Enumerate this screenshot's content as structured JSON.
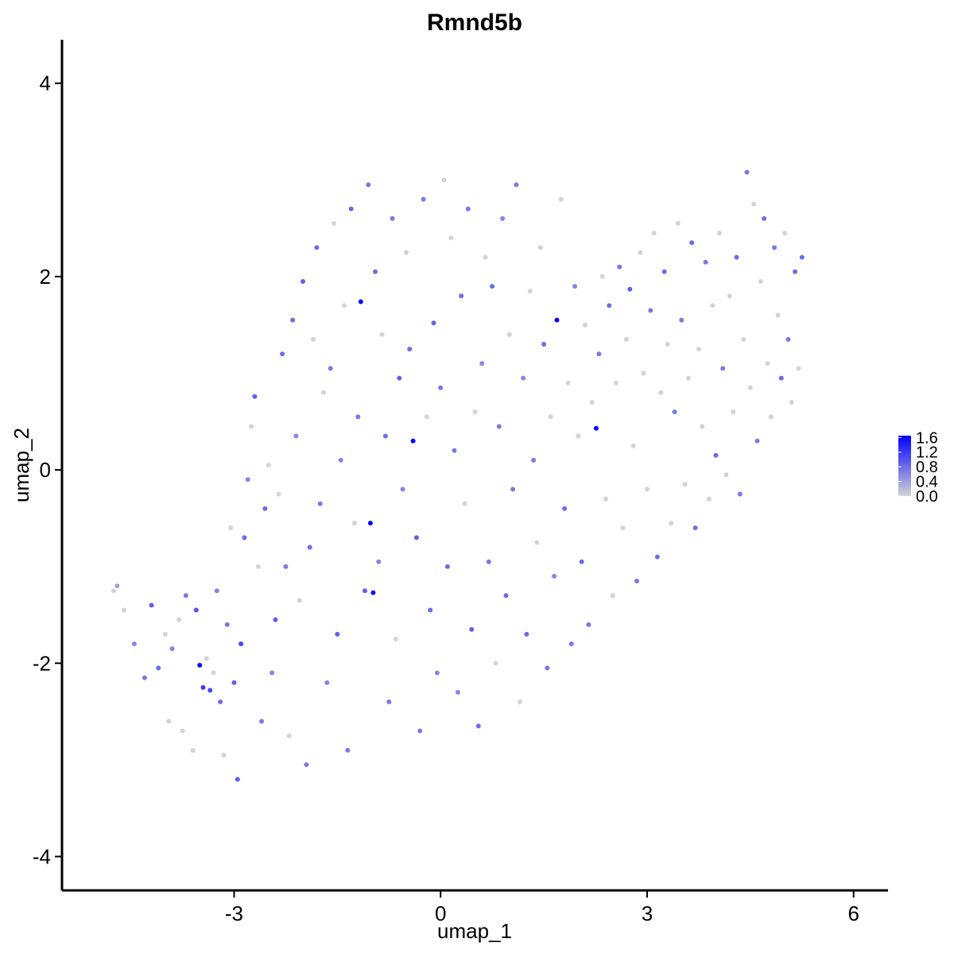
{
  "chart_data": {
    "type": "scatter",
    "title": "Rmnd5b",
    "xlabel": "umap_1",
    "ylabel": "umap_2",
    "xlim": [
      -5.5,
      6.5
    ],
    "ylim": [
      -4.35,
      4.45
    ],
    "x_ticks": [
      -3,
      0,
      3,
      6
    ],
    "x_tick_labels": [
      "-3",
      "0",
      "3",
      "6"
    ],
    "y_ticks": [
      4,
      2,
      0,
      -2,
      -4
    ],
    "y_tick_labels": [
      "4",
      "2",
      "0",
      "-2",
      "-4"
    ],
    "grid": false,
    "color_scale": {
      "low": "#d3d3d3",
      "high": "#0000ff",
      "min": 0.0,
      "max": 1.65,
      "breaks": [
        1.6,
        1.2,
        0.8,
        0.4,
        0.0
      ],
      "break_labels": [
        "1.6",
        "1.2",
        "0.8",
        "0.4",
        "0.0"
      ],
      "legend_position": "right"
    },
    "points": [
      [
        -4.75,
        -1.25,
        0
      ],
      [
        -4.7,
        -1.2,
        0.4
      ],
      [
        -4.6,
        -1.45,
        0
      ],
      [
        -4.45,
        -1.8,
        0.6
      ],
      [
        -4.3,
        -2.15,
        0.7
      ],
      [
        -4.2,
        -1.4,
        0.9
      ],
      [
        -4.1,
        -2.05,
        0.8
      ],
      [
        -4.0,
        -1.7,
        0
      ],
      [
        -3.95,
        -2.6,
        0
      ],
      [
        -3.9,
        -1.85,
        0.6
      ],
      [
        -3.8,
        -1.55,
        0
      ],
      [
        -3.75,
        -2.7,
        0
      ],
      [
        -3.7,
        -1.3,
        0.7
      ],
      [
        -3.6,
        -2.9,
        0
      ],
      [
        -3.55,
        -1.45,
        1.0
      ],
      [
        -3.5,
        -2.02,
        1.6
      ],
      [
        -3.45,
        -2.25,
        1.2
      ],
      [
        -3.4,
        -1.95,
        0
      ],
      [
        -3.35,
        -2.28,
        1.1
      ],
      [
        -3.3,
        -2.1,
        0
      ],
      [
        -3.25,
        -1.25,
        0.6
      ],
      [
        -3.2,
        -2.4,
        0.8
      ],
      [
        -3.15,
        -2.95,
        0
      ],
      [
        -3.1,
        -1.6,
        0.7
      ],
      [
        -3.05,
        -0.6,
        0
      ],
      [
        -3.0,
        -2.2,
        0.9
      ],
      [
        -2.95,
        -3.2,
        0.9
      ],
      [
        -2.9,
        -1.8,
        1.1
      ],
      [
        -2.85,
        -0.7,
        0.8
      ],
      [
        -2.8,
        -0.1,
        0.6
      ],
      [
        -2.75,
        0.45,
        0
      ],
      [
        -2.7,
        0.76,
        0.9
      ],
      [
        -2.65,
        -1.0,
        0
      ],
      [
        -2.6,
        -2.6,
        0.7
      ],
      [
        -2.55,
        -0.4,
        0.8
      ],
      [
        -2.5,
        0.05,
        0
      ],
      [
        -2.45,
        -2.1,
        0.6
      ],
      [
        -2.4,
        -1.55,
        0.9
      ],
      [
        -2.35,
        -0.25,
        0
      ],
      [
        -2.3,
        1.2,
        0.8
      ],
      [
        -2.25,
        -1.0,
        0.7
      ],
      [
        -2.2,
        -2.75,
        0
      ],
      [
        -2.15,
        1.55,
        0.8
      ],
      [
        -2.1,
        0.35,
        0.6
      ],
      [
        -2.05,
        -1.35,
        0
      ],
      [
        -2.0,
        1.95,
        0.9
      ],
      [
        -1.95,
        -3.05,
        0.7
      ],
      [
        -1.9,
        -0.8,
        0.8
      ],
      [
        -1.85,
        1.35,
        0
      ],
      [
        -1.8,
        2.3,
        0.8
      ],
      [
        -1.75,
        -0.35,
        0.7
      ],
      [
        -1.7,
        0.8,
        0
      ],
      [
        -1.65,
        -2.2,
        0.6
      ],
      [
        -1.6,
        1.05,
        0.7
      ],
      [
        -1.55,
        2.55,
        0
      ],
      [
        -1.5,
        -1.7,
        0.9
      ],
      [
        -1.45,
        0.1,
        0.6
      ],
      [
        -1.4,
        1.7,
        0
      ],
      [
        -1.35,
        -2.9,
        0.7
      ],
      [
        -1.3,
        2.7,
        0.8
      ],
      [
        -1.25,
        -0.55,
        0
      ],
      [
        -1.2,
        0.55,
        0.7
      ],
      [
        -1.16,
        1.74,
        1.6
      ],
      [
        -1.1,
        -1.25,
        0.9
      ],
      [
        -1.05,
        2.95,
        0.7
      ],
      [
        -1.02,
        -0.55,
        1.6
      ],
      [
        -0.98,
        -1.27,
        1.5
      ],
      [
        -0.95,
        2.05,
        0.8
      ],
      [
        -0.9,
        -0.95,
        0.6
      ],
      [
        -0.85,
        1.4,
        0
      ],
      [
        -0.8,
        0.35,
        0.8
      ],
      [
        -0.75,
        -2.4,
        0.7
      ],
      [
        -0.7,
        2.6,
        0.7
      ],
      [
        -0.65,
        -1.75,
        0
      ],
      [
        -0.6,
        0.95,
        0.9
      ],
      [
        -0.55,
        -0.2,
        0.6
      ],
      [
        -0.5,
        2.25,
        0
      ],
      [
        -0.45,
        1.25,
        0.8
      ],
      [
        -0.4,
        0.3,
        1.6
      ],
      [
        -0.35,
        -0.7,
        0.9
      ],
      [
        -0.3,
        -2.7,
        0.7
      ],
      [
        -0.25,
        2.8,
        0.7
      ],
      [
        -0.2,
        0.55,
        0
      ],
      [
        -0.15,
        -1.45,
        0.8
      ],
      [
        -0.1,
        1.52,
        0.9
      ],
      [
        -0.05,
        -2.1,
        0.6
      ],
      [
        0.0,
        0.85,
        0.7
      ],
      [
        0.05,
        3.0,
        0
      ],
      [
        0.1,
        -1.0,
        0.8
      ],
      [
        0.15,
        2.4,
        0
      ],
      [
        0.2,
        0.2,
        0.7
      ],
      [
        0.25,
        -2.3,
        0.6
      ],
      [
        0.3,
        1.8,
        0.8
      ],
      [
        0.35,
        -0.35,
        0
      ],
      [
        0.4,
        2.7,
        0.7
      ],
      [
        0.45,
        -1.65,
        0.9
      ],
      [
        0.5,
        0.6,
        0
      ],
      [
        0.55,
        -2.65,
        0.8
      ],
      [
        0.6,
        1.1,
        0.6
      ],
      [
        0.65,
        2.2,
        0
      ],
      [
        0.7,
        -0.95,
        0.7
      ],
      [
        0.75,
        1.9,
        0.8
      ],
      [
        0.8,
        -2.0,
        0
      ],
      [
        0.85,
        0.45,
        0.7
      ],
      [
        0.9,
        2.6,
        0.6
      ],
      [
        0.95,
        -1.3,
        0.8
      ],
      [
        1.0,
        1.4,
        0
      ],
      [
        1.05,
        -0.2,
        0.7
      ],
      [
        1.1,
        2.95,
        0.7
      ],
      [
        1.15,
        -2.4,
        0
      ],
      [
        1.2,
        0.95,
        0.6
      ],
      [
        1.25,
        -1.7,
        0.8
      ],
      [
        1.3,
        1.85,
        0
      ],
      [
        1.35,
        0.1,
        0.7
      ],
      [
        1.4,
        -0.75,
        0
      ],
      [
        1.45,
        2.3,
        0
      ],
      [
        1.5,
        1.3,
        0.8
      ],
      [
        1.55,
        -2.05,
        0.7
      ],
      [
        1.6,
        0.55,
        0
      ],
      [
        1.65,
        -1.1,
        0.6
      ],
      [
        1.69,
        1.55,
        1.6
      ],
      [
        1.75,
        2.8,
        0
      ],
      [
        1.8,
        -0.4,
        0.8
      ],
      [
        1.85,
        0.9,
        0
      ],
      [
        1.9,
        -1.8,
        0.7
      ],
      [
        1.95,
        1.9,
        0.6
      ],
      [
        2.0,
        0.35,
        0
      ],
      [
        2.05,
        -0.95,
        0.8
      ],
      [
        2.1,
        1.5,
        0
      ],
      [
        2.15,
        -1.6,
        0.7
      ],
      [
        2.2,
        0.7,
        0
      ],
      [
        2.26,
        0.43,
        1.6
      ],
      [
        2.3,
        1.2,
        0.7
      ],
      [
        2.35,
        2.0,
        0
      ],
      [
        2.4,
        -0.3,
        0
      ],
      [
        2.45,
        1.7,
        0.8
      ],
      [
        2.5,
        -1.3,
        0
      ],
      [
        2.55,
        0.9,
        0
      ],
      [
        2.6,
        2.1,
        0.7
      ],
      [
        2.65,
        -0.6,
        0
      ],
      [
        2.7,
        1.35,
        0
      ],
      [
        2.75,
        1.87,
        0.9
      ],
      [
        2.8,
        0.25,
        0
      ],
      [
        2.85,
        -1.15,
        0.7
      ],
      [
        2.9,
        2.25,
        0
      ],
      [
        2.95,
        1.0,
        0
      ],
      [
        3.0,
        -0.2,
        0
      ],
      [
        3.05,
        1.65,
        0.7
      ],
      [
        3.1,
        2.45,
        0
      ],
      [
        3.15,
        -0.9,
        0.8
      ],
      [
        3.2,
        0.8,
        0
      ],
      [
        3.25,
        2.05,
        0.8
      ],
      [
        3.3,
        1.3,
        0
      ],
      [
        3.35,
        -0.55,
        0
      ],
      [
        3.4,
        0.6,
        0.7
      ],
      [
        3.45,
        2.55,
        0
      ],
      [
        3.5,
        1.55,
        0.7
      ],
      [
        3.55,
        -0.15,
        0
      ],
      [
        3.6,
        0.95,
        0
      ],
      [
        3.65,
        2.35,
        0.8
      ],
      [
        3.7,
        -0.6,
        0.8
      ],
      [
        3.75,
        1.25,
        0
      ],
      [
        3.8,
        0.45,
        0
      ],
      [
        3.85,
        2.15,
        0.7
      ],
      [
        3.9,
        -0.3,
        0
      ],
      [
        3.95,
        1.7,
        0
      ],
      [
        4.0,
        0.15,
        0.8
      ],
      [
        4.05,
        2.45,
        0
      ],
      [
        4.1,
        1.05,
        0.7
      ],
      [
        4.15,
        -0.05,
        0
      ],
      [
        4.2,
        1.8,
        0
      ],
      [
        4.25,
        0.6,
        0
      ],
      [
        4.3,
        2.2,
        0.8
      ],
      [
        4.35,
        -0.25,
        0.7
      ],
      [
        4.4,
        1.35,
        0
      ],
      [
        4.45,
        3.08,
        0.7
      ],
      [
        4.5,
        0.85,
        0
      ],
      [
        4.55,
        2.75,
        0
      ],
      [
        4.6,
        0.3,
        0.7
      ],
      [
        4.65,
        1.95,
        0
      ],
      [
        4.7,
        2.6,
        0.8
      ],
      [
        4.75,
        1.1,
        0
      ],
      [
        4.8,
        0.55,
        0
      ],
      [
        4.85,
        2.3,
        0.7
      ],
      [
        4.9,
        1.6,
        0
      ],
      [
        4.95,
        0.95,
        0.8
      ],
      [
        5.0,
        2.45,
        0
      ],
      [
        5.05,
        1.35,
        0.7
      ],
      [
        5.1,
        0.7,
        0
      ],
      [
        5.15,
        2.05,
        0.8
      ],
      [
        5.2,
        1.05,
        0
      ],
      [
        5.25,
        2.2,
        0.8
      ]
    ]
  }
}
